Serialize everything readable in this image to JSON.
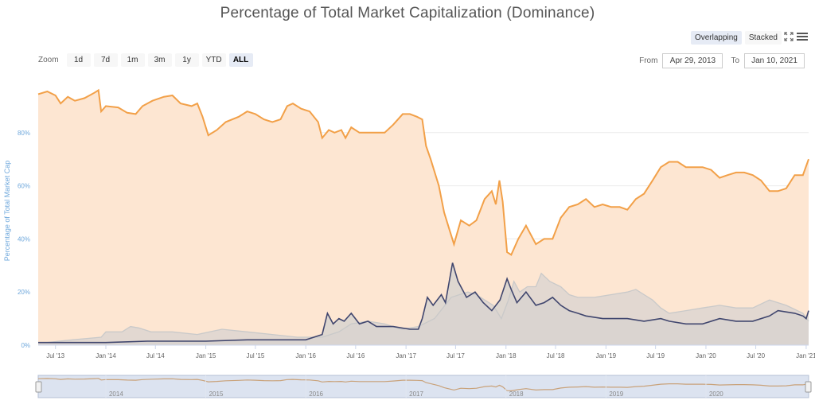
{
  "controls": {
    "zoom_label": "Zoom",
    "zoom_buttons": [
      "1d",
      "7d",
      "1m",
      "3m",
      "1y",
      "YTD",
      "ALL"
    ],
    "active_zoom": "ALL",
    "mode_buttons": [
      "Overlapping",
      "Stacked"
    ],
    "active_mode": "Overlapping",
    "from_label": "From",
    "from_value": "Apr 29, 2013",
    "to_label": "To",
    "to_value": "Jan 10, 2021"
  },
  "colors": {
    "btc": "#f2a048",
    "btc_fill": "#fde6d2",
    "alt": "#40466e",
    "alt_fill": "#d8d3d0",
    "eth": "#c9c9c9",
    "navigator_fill": "#dce3f0",
    "axis_label": "#6fa8dc"
  },
  "chart_data": {
    "type": "area",
    "title": "Percentage of Total Market Capitalization (Dominance)",
    "ylabel": "Percentage of Total Market Cap",
    "xlabel": "",
    "ylim": [
      0,
      100
    ],
    "x_range": [
      "2013-04-29",
      "2021-01-10"
    ],
    "y_ticks": [
      "0%",
      "20%",
      "40%",
      "60%",
      "80%"
    ],
    "x_ticks": [
      {
        "date": "2013-07-01",
        "label": "Jul '13"
      },
      {
        "date": "2014-01-01",
        "label": "Jan '14"
      },
      {
        "date": "2014-07-01",
        "label": "Jul '14"
      },
      {
        "date": "2015-01-01",
        "label": "Jan '15"
      },
      {
        "date": "2015-07-01",
        "label": "Jul '15"
      },
      {
        "date": "2016-01-01",
        "label": "Jan '16"
      },
      {
        "date": "2016-07-01",
        "label": "Jul '16"
      },
      {
        "date": "2017-01-01",
        "label": "Jan '17"
      },
      {
        "date": "2017-07-01",
        "label": "Jul '17"
      },
      {
        "date": "2018-01-01",
        "label": "Jan '18"
      },
      {
        "date": "2018-07-01",
        "label": "Jul '18"
      },
      {
        "date": "2019-01-01",
        "label": "Jan '19"
      },
      {
        "date": "2019-07-01",
        "label": "Jul '19"
      },
      {
        "date": "2020-01-01",
        "label": "Jan '20"
      },
      {
        "date": "2020-07-01",
        "label": "Jul '20"
      },
      {
        "date": "2021-01-01",
        "label": "Jan '21"
      }
    ],
    "navigator_ticks": [
      {
        "date": "2014-01-01",
        "label": "2014"
      },
      {
        "date": "2015-01-01",
        "label": "2015"
      },
      {
        "date": "2016-01-01",
        "label": "2016"
      },
      {
        "date": "2017-01-01",
        "label": "2017"
      },
      {
        "date": "2018-01-01",
        "label": "2018"
      },
      {
        "date": "2019-01-01",
        "label": "2019"
      },
      {
        "date": "2020-01-01",
        "label": "2020"
      }
    ],
    "series": [
      {
        "values": [
          [
            "2013-04-29",
            94.5
          ],
          [
            "2013-06-01",
            95.5
          ],
          [
            "2013-07-01",
            94
          ],
          [
            "2013-07-20",
            91
          ],
          [
            "2013-08-15",
            93.5
          ],
          [
            "2013-09-10",
            92
          ],
          [
            "2013-10-15",
            93
          ],
          [
            "2013-11-20",
            95
          ],
          [
            "2013-12-05",
            96
          ],
          [
            "2013-12-15",
            88
          ],
          [
            "2014-01-01",
            90
          ],
          [
            "2014-02-15",
            89.5
          ],
          [
            "2014-03-20",
            87.5
          ],
          [
            "2014-04-20",
            87
          ],
          [
            "2014-05-15",
            90
          ],
          [
            "2014-06-20",
            92
          ],
          [
            "2014-08-01",
            93.5
          ],
          [
            "2014-09-01",
            94
          ],
          [
            "2014-10-01",
            91
          ],
          [
            "2014-11-10",
            90
          ],
          [
            "2014-12-01",
            91
          ],
          [
            "2014-12-20",
            86
          ],
          [
            "2015-01-10",
            79
          ],
          [
            "2015-02-10",
            81
          ],
          [
            "2015-03-15",
            84
          ],
          [
            "2015-05-01",
            86
          ],
          [
            "2015-06-01",
            88
          ],
          [
            "2015-07-01",
            87
          ],
          [
            "2015-08-01",
            85
          ],
          [
            "2015-09-01",
            84
          ],
          [
            "2015-10-01",
            85
          ],
          [
            "2015-10-25",
            90
          ],
          [
            "2015-11-15",
            91
          ],
          [
            "2015-12-15",
            89
          ],
          [
            "2016-01-15",
            88
          ],
          [
            "2016-02-15",
            84
          ],
          [
            "2016-03-01",
            78
          ],
          [
            "2016-03-25",
            81
          ],
          [
            "2016-04-15",
            80
          ],
          [
            "2016-05-10",
            81
          ],
          [
            "2016-05-25",
            78
          ],
          [
            "2016-06-15",
            82
          ],
          [
            "2016-07-15",
            80
          ],
          [
            "2016-09-01",
            80
          ],
          [
            "2016-10-15",
            80
          ],
          [
            "2016-11-15",
            83
          ],
          [
            "2016-12-20",
            87
          ],
          [
            "2017-01-15",
            87
          ],
          [
            "2017-02-10",
            86
          ],
          [
            "2017-03-01",
            85
          ],
          [
            "2017-03-15",
            75
          ],
          [
            "2017-04-01",
            70
          ],
          [
            "2017-05-01",
            60
          ],
          [
            "2017-05-20",
            50
          ],
          [
            "2017-06-10",
            43
          ],
          [
            "2017-06-25",
            38
          ],
          [
            "2017-07-20",
            47
          ],
          [
            "2017-08-20",
            45
          ],
          [
            "2017-09-15",
            47
          ],
          [
            "2017-10-15",
            55
          ],
          [
            "2017-11-10",
            58
          ],
          [
            "2017-11-25",
            53
          ],
          [
            "2017-12-08",
            62
          ],
          [
            "2017-12-20",
            54
          ],
          [
            "2018-01-05",
            35
          ],
          [
            "2018-01-20",
            34
          ],
          [
            "2018-02-15",
            40
          ],
          [
            "2018-03-15",
            45
          ],
          [
            "2018-04-20",
            38
          ],
          [
            "2018-05-20",
            40
          ],
          [
            "2018-06-20",
            40
          ],
          [
            "2018-07-20",
            48
          ],
          [
            "2018-08-20",
            52
          ],
          [
            "2018-09-20",
            53
          ],
          [
            "2018-10-20",
            55
          ],
          [
            "2018-11-20",
            52
          ],
          [
            "2018-12-20",
            53
          ],
          [
            "2019-01-20",
            52
          ],
          [
            "2019-02-20",
            52
          ],
          [
            "2019-03-20",
            51
          ],
          [
            "2019-04-20",
            55
          ],
          [
            "2019-05-20",
            57
          ],
          [
            "2019-06-20",
            62
          ],
          [
            "2019-07-20",
            67
          ],
          [
            "2019-08-20",
            69
          ],
          [
            "2019-09-20",
            69
          ],
          [
            "2019-10-20",
            67
          ],
          [
            "2019-11-20",
            67
          ],
          [
            "2019-12-20",
            67
          ],
          [
            "2020-01-20",
            66
          ],
          [
            "2020-02-20",
            63
          ],
          [
            "2020-03-20",
            64
          ],
          [
            "2020-04-20",
            65
          ],
          [
            "2020-05-20",
            65
          ],
          [
            "2020-06-20",
            64
          ],
          [
            "2020-07-20",
            62
          ],
          [
            "2020-08-20",
            58
          ],
          [
            "2020-09-20",
            58
          ],
          [
            "2020-10-20",
            59
          ],
          [
            "2020-11-20",
            64
          ],
          [
            "2020-12-20",
            64
          ],
          [
            "2021-01-10",
            70
          ]
        ]
      },
      {
        "values": [
          [
            "2013-04-29",
            1
          ],
          [
            "2014-01-01",
            1
          ],
          [
            "2014-06-01",
            1.5
          ],
          [
            "2015-01-01",
            1.5
          ],
          [
            "2015-06-01",
            2
          ],
          [
            "2015-09-01",
            2
          ],
          [
            "2016-01-01",
            2
          ],
          [
            "2016-03-01",
            4
          ],
          [
            "2016-03-20",
            12
          ],
          [
            "2016-04-10",
            8
          ],
          [
            "2016-05-01",
            10
          ],
          [
            "2016-05-20",
            9
          ],
          [
            "2016-06-15",
            12
          ],
          [
            "2016-07-15",
            8
          ],
          [
            "2016-08-15",
            9
          ],
          [
            "2016-09-15",
            7
          ],
          [
            "2016-11-15",
            7
          ],
          [
            "2017-01-15",
            6
          ],
          [
            "2017-02-15",
            6
          ],
          [
            "2017-03-01",
            10
          ],
          [
            "2017-03-20",
            18
          ],
          [
            "2017-04-10",
            15
          ],
          [
            "2017-05-10",
            19
          ],
          [
            "2017-05-25",
            16
          ],
          [
            "2017-06-20",
            31
          ],
          [
            "2017-07-10",
            24
          ],
          [
            "2017-08-10",
            18
          ],
          [
            "2017-09-10",
            20
          ],
          [
            "2017-10-10",
            16
          ],
          [
            "2017-11-10",
            13
          ],
          [
            "2017-12-10",
            17
          ],
          [
            "2018-01-05",
            25
          ],
          [
            "2018-01-20",
            21
          ],
          [
            "2018-02-10",
            16
          ],
          [
            "2018-03-15",
            20
          ],
          [
            "2018-04-20",
            15
          ],
          [
            "2018-05-20",
            16
          ],
          [
            "2018-06-20",
            18
          ],
          [
            "2018-07-20",
            15
          ],
          [
            "2018-08-20",
            13
          ],
          [
            "2018-09-20",
            12
          ],
          [
            "2018-10-20",
            11
          ],
          [
            "2018-12-20",
            10
          ],
          [
            "2019-01-20",
            10
          ],
          [
            "2019-03-20",
            10
          ],
          [
            "2019-05-20",
            9
          ],
          [
            "2019-07-20",
            10
          ],
          [
            "2019-08-20",
            9
          ],
          [
            "2019-10-20",
            8
          ],
          [
            "2019-12-20",
            8
          ],
          [
            "2020-02-20",
            10
          ],
          [
            "2020-04-20",
            9
          ],
          [
            "2020-06-20",
            9
          ],
          [
            "2020-08-20",
            11
          ],
          [
            "2020-09-20",
            13
          ],
          [
            "2020-11-20",
            12
          ],
          [
            "2020-12-20",
            11
          ],
          [
            "2021-01-01",
            10
          ],
          [
            "2021-01-10",
            13
          ]
        ]
      },
      {
        "values": [
          [
            "2013-04-29",
            1
          ],
          [
            "2013-06-01",
            1
          ],
          [
            "2013-09-01",
            2
          ],
          [
            "2013-12-15",
            3
          ],
          [
            "2014-01-01",
            5
          ],
          [
            "2014-03-01",
            5
          ],
          [
            "2014-04-01",
            7
          ],
          [
            "2014-05-01",
            6.5
          ],
          [
            "2014-06-15",
            5
          ],
          [
            "2014-09-01",
            5
          ],
          [
            "2014-12-01",
            4
          ],
          [
            "2015-01-15",
            5
          ],
          [
            "2015-03-01",
            6
          ],
          [
            "2015-06-01",
            5
          ],
          [
            "2015-09-01",
            4
          ],
          [
            "2015-12-01",
            3
          ],
          [
            "2016-03-01",
            3
          ],
          [
            "2016-05-01",
            5
          ],
          [
            "2016-06-15",
            8
          ],
          [
            "2016-08-15",
            9
          ],
          [
            "2016-10-15",
            8
          ],
          [
            "2016-12-15",
            6
          ],
          [
            "2017-02-15",
            7
          ],
          [
            "2017-04-15",
            10
          ],
          [
            "2017-06-15",
            18
          ],
          [
            "2017-07-15",
            19
          ],
          [
            "2017-08-15",
            20
          ],
          [
            "2017-09-15",
            19
          ],
          [
            "2017-10-15",
            17
          ],
          [
            "2017-11-15",
            15
          ],
          [
            "2017-12-15",
            10
          ],
          [
            "2018-01-10",
            17
          ],
          [
            "2018-01-30",
            24
          ],
          [
            "2018-02-20",
            20
          ],
          [
            "2018-03-20",
            22
          ],
          [
            "2018-04-20",
            22
          ],
          [
            "2018-05-10",
            27
          ],
          [
            "2018-06-10",
            24
          ],
          [
            "2018-07-20",
            22
          ],
          [
            "2018-08-20",
            19
          ],
          [
            "2018-09-20",
            18
          ],
          [
            "2018-11-20",
            18
          ],
          [
            "2019-01-20",
            19
          ],
          [
            "2019-03-20",
            20
          ],
          [
            "2019-04-20",
            21
          ],
          [
            "2019-05-20",
            19
          ],
          [
            "2019-06-20",
            17
          ],
          [
            "2019-07-20",
            14
          ],
          [
            "2019-08-20",
            12
          ],
          [
            "2019-10-20",
            13
          ],
          [
            "2019-12-20",
            14
          ],
          [
            "2020-02-20",
            15
          ],
          [
            "2020-04-20",
            14
          ],
          [
            "2020-06-20",
            14
          ],
          [
            "2020-08-20",
            17
          ],
          [
            "2020-10-20",
            15
          ],
          [
            "2020-12-20",
            12
          ],
          [
            "2021-01-10",
            9
          ]
        ]
      }
    ]
  }
}
